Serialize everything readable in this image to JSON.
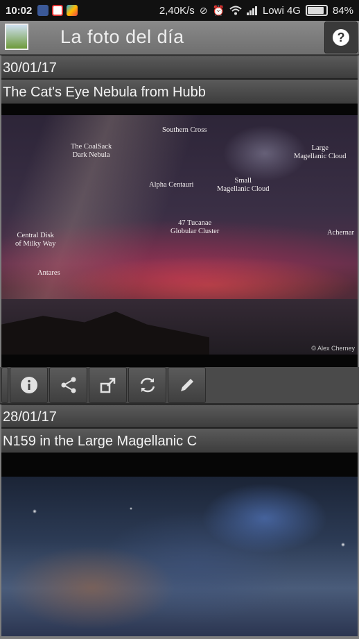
{
  "status_bar": {
    "time": "10:02",
    "speed": "2,40K/s",
    "carrier": "Lowi 4G",
    "battery": "84%",
    "battery_level": 0.84,
    "notification_icons": [
      "facebook-icon",
      "gmail-icon",
      "play-store-icon"
    ],
    "status_icons": [
      "data-saver-icon",
      "alarm-icon",
      "wifi-icon",
      "signal-icon"
    ]
  },
  "app_bar": {
    "title": "La foto del día",
    "help_label": "?"
  },
  "items": [
    {
      "date": "30/01/17",
      "title": "The Cat's Eye Nebula from Hubb",
      "photo_labels": {
        "southern_cross": "Southern Cross",
        "coalsack": "The CoalSack\nDark Nebula",
        "lmc": "Large\nMagellanic Cloud",
        "smc": "Small\nMagellanic Cloud",
        "alpha_centauri": "Alpha Centauri",
        "tucanae": "47 Tucanae\nGlobular Cluster",
        "milky_way": "Central Disk\nof Milky Way",
        "achernar": "Achernar",
        "antares": "Antares",
        "credit": "© Alex Cherney"
      }
    },
    {
      "date": "28/01/17",
      "title": "N159 in the Large Magellanic C"
    }
  ],
  "actions": [
    "info-icon",
    "share-icon",
    "open-external-icon",
    "refresh-icon",
    "edit-icon"
  ],
  "colors": {
    "background": "#7e7e7e",
    "strip": "#4a4a4a",
    "status_bar": "#111111"
  }
}
